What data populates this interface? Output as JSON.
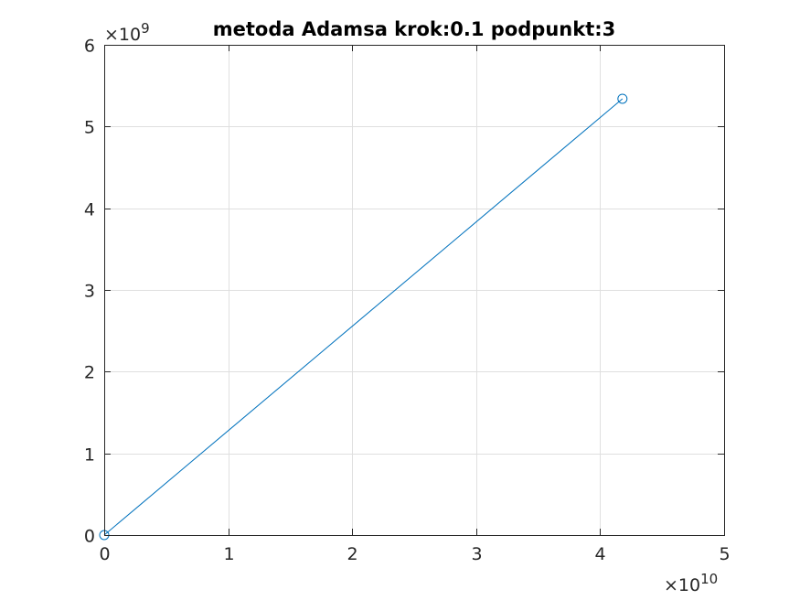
{
  "chart_data": {
    "type": "line",
    "title": "metoda Adamsa krok:0.1 podpunkt:3",
    "xlabel": "",
    "ylabel": "",
    "xlim": [
      0,
      50000000000
    ],
    "ylim": [
      0,
      6000000000
    ],
    "xticks": [
      0,
      1,
      2,
      3,
      4,
      5
    ],
    "yticks": [
      0,
      1,
      2,
      3,
      4,
      5,
      6
    ],
    "x_multiplier": {
      "base": "×10",
      "exponent": "10"
    },
    "y_multiplier": {
      "base": "×10",
      "exponent": "9"
    },
    "grid": true,
    "box": true,
    "series": [
      {
        "x": [
          0,
          41800000000
        ],
        "y": [
          0,
          5340000000
        ],
        "color": "#0072BD",
        "marker": "circle"
      }
    ]
  }
}
